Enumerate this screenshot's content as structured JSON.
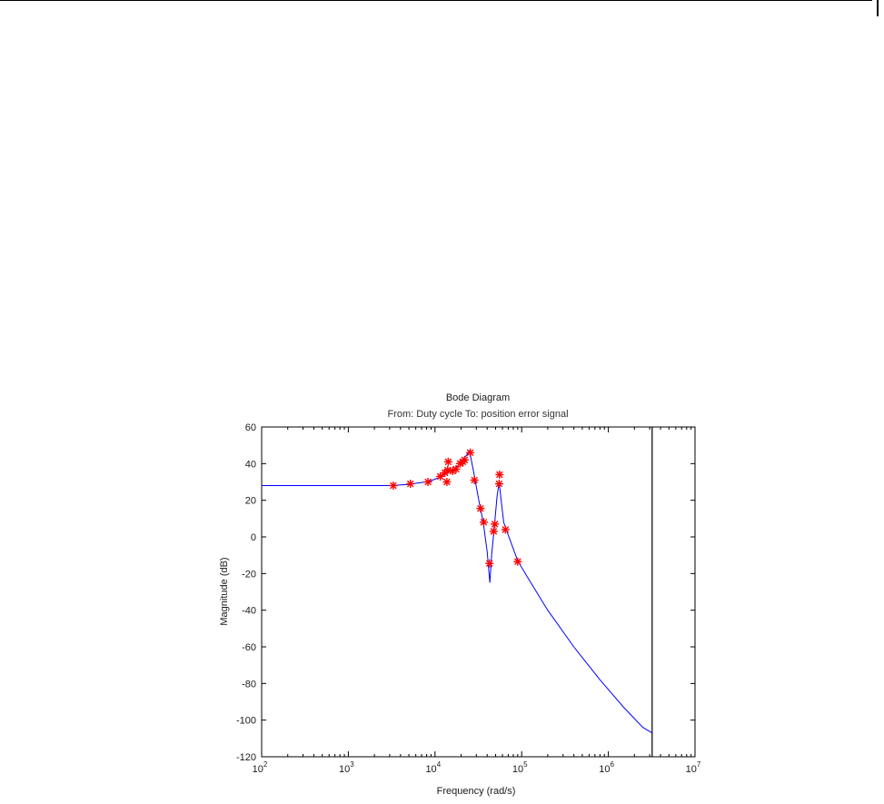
{
  "chart_data": {
    "type": "line",
    "title": "Bode Diagram",
    "subtitle": "From: Duty cycle  To: position error signal",
    "xlabel": "Frequency  (rad/s)",
    "ylabel": "Magnitude (dB)",
    "xscale": "log",
    "xlim": [
      100,
      10000000
    ],
    "ylim": [
      -120,
      60
    ],
    "x_ticks": [
      {
        "value": 100,
        "base": "10",
        "exp": "2"
      },
      {
        "value": 1000,
        "base": "10",
        "exp": "3"
      },
      {
        "value": 10000,
        "base": "10",
        "exp": "4"
      },
      {
        "value": 100000,
        "base": "10",
        "exp": "5"
      },
      {
        "value": 1000000,
        "base": "10",
        "exp": "6"
      },
      {
        "value": 10000000,
        "base": "10",
        "exp": "7"
      }
    ],
    "y_ticks": [
      60,
      40,
      20,
      0,
      -20,
      -40,
      -60,
      -80,
      -100,
      -120
    ],
    "grid": false,
    "colors": {
      "model": "#0000ff",
      "measured": "#ff0000",
      "marker_line": "#000000"
    },
    "vertical_line_x": 3200000,
    "series": [
      {
        "kind": "line",
        "x": [
          100,
          500,
          1000,
          2000,
          3200,
          5000,
          6500,
          8300,
          10000,
          12000,
          13000,
          14000,
          15000,
          17000,
          19000,
          21000,
          23000,
          25000,
          28000,
          32000,
          36000,
          40000,
          43000,
          45000,
          48000,
          52000,
          55000,
          58000,
          62000,
          70000,
          90000,
          120000,
          200000,
          400000,
          800000,
          1500000,
          2500000,
          3200000
        ],
        "y": [
          28,
          28,
          28,
          28,
          28,
          28.7,
          29.5,
          30.2,
          31.5,
          33,
          34.5,
          35,
          36,
          37.5,
          39.5,
          42,
          44.5,
          47,
          35,
          20,
          8,
          -8,
          -25,
          -10,
          4,
          22,
          30,
          20,
          8,
          1,
          -13,
          -23,
          -40,
          -60,
          -78,
          -93,
          -104,
          -107
        ]
      },
      {
        "kind": "points",
        "x": [
          3300,
          5200,
          8300,
          11500,
          13000,
          13700,
          14000,
          14200,
          16000,
          17500,
          19500,
          21000,
          22000,
          25500,
          28500,
          33500,
          36500,
          42500,
          47500,
          49000,
          55000,
          55500,
          65000,
          90000
        ],
        "y": [
          28,
          29,
          30,
          33,
          35,
          30,
          36.5,
          41,
          36,
          37,
          40,
          41,
          42,
          46,
          31,
          15.5,
          8,
          -14.5,
          3,
          7,
          29,
          34,
          4,
          -13.5
        ]
      }
    ]
  }
}
